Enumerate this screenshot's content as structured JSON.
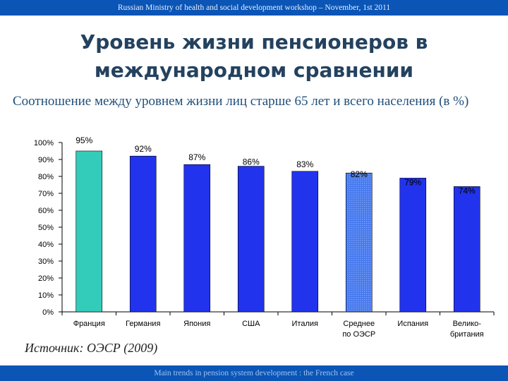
{
  "header": {
    "text": "Russian Ministry of health and social development workshop – November, 1st 2011"
  },
  "title": {
    "line1": "Уровень жизни пенсионеров в",
    "line2": "международном сравнении"
  },
  "subtitle": "Соотношение между уровнем жизни лиц старше 65 лет и всего населения (в %)",
  "source": "Источник: ОЭСР (2009)",
  "footer": {
    "text": "Main trends in pension system development : the French case"
  },
  "colors": {
    "bar": "#2233ee",
    "highlight": "#33ccbb",
    "oecd": "#4477ee",
    "bar_outline": "#000000",
    "brand_bar": "#0a55b6"
  },
  "chart_data": {
    "type": "bar",
    "categories": [
      [
        "Франция"
      ],
      [
        "Германия"
      ],
      [
        "Япония"
      ],
      [
        "США"
      ],
      [
        "Италия"
      ],
      [
        "Среднее",
        "по ОЭСР"
      ],
      [
        "Испания"
      ],
      [
        "Велико-",
        "британия"
      ]
    ],
    "values": [
      95,
      92,
      87,
      86,
      83,
      82,
      79,
      74
    ],
    "data_labels": [
      "95%",
      "92%",
      "87%",
      "86%",
      "83%",
      "82%",
      "79%",
      "74%"
    ],
    "highlight": [
      "Франция"
    ],
    "patterned": [
      "Среднее по ОЭСР"
    ],
    "ylim": [
      0,
      100
    ],
    "yticks": [
      0,
      10,
      20,
      30,
      40,
      50,
      60,
      70,
      80,
      90,
      100
    ],
    "ytick_labels": [
      "0%",
      "10%",
      "20%",
      "30%",
      "40%",
      "50%",
      "60%",
      "70%",
      "80%",
      "90%",
      "100%"
    ],
    "grid": false,
    "legend": "none"
  }
}
